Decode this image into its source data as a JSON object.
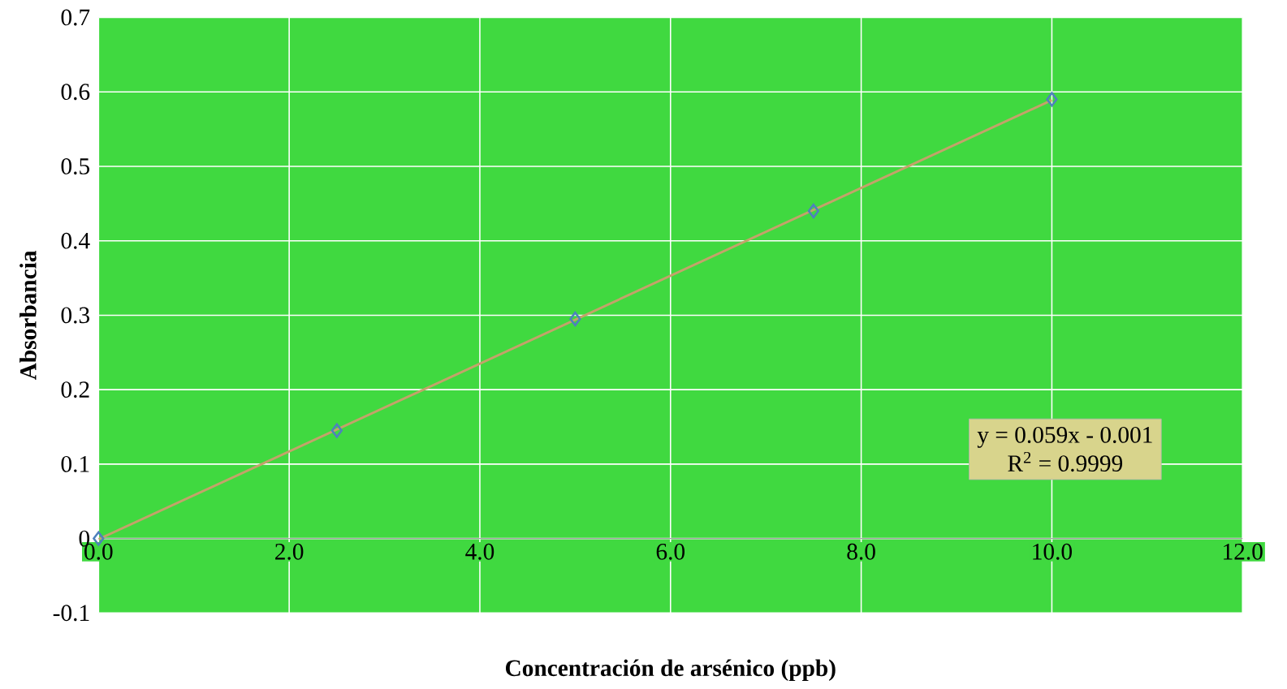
{
  "chart_data": {
    "type": "scatter",
    "xlabel": "Concentración de arsénico (ppb)",
    "ylabel": "Absorbancia",
    "xlim": [
      0,
      12
    ],
    "ylim": [
      -0.1,
      0.7
    ],
    "xticks": [
      {
        "value": 0,
        "label": "0.0"
      },
      {
        "value": 2,
        "label": "2.0"
      },
      {
        "value": 4,
        "label": "4.0"
      },
      {
        "value": 6,
        "label": "6.0"
      },
      {
        "value": 8,
        "label": "8.0"
      },
      {
        "value": 10,
        "label": "10.0"
      },
      {
        "value": 12,
        "label": "12.0"
      }
    ],
    "yticks": [
      -0.1,
      0,
      0.1,
      0.2,
      0.3,
      0.4,
      0.5,
      0.6,
      0.7
    ],
    "grid": true,
    "series": [
      {
        "marker": "diamond",
        "color": "#4f81bd",
        "x": [
          0,
          2.5,
          5,
          7.5,
          10
        ],
        "values": [
          0,
          0.145,
          0.295,
          0.44,
          0.59
        ]
      },
      {
        "type": "line",
        "marker": "none",
        "line_style": "solid",
        "color": "#c4a26a",
        "x": [
          0,
          10
        ],
        "values": [
          -0.001,
          0.589
        ]
      }
    ],
    "annotations": [
      "y = 0.059x - 0.001",
      "R$^{2}$ = 0.9999"
    ]
  }
}
